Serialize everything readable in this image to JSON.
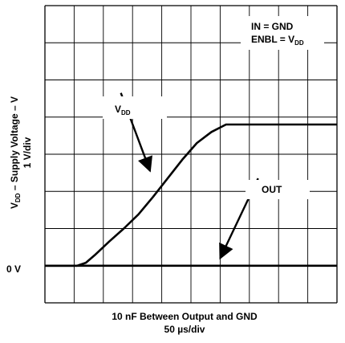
{
  "chart_data": {
    "type": "line",
    "xlabel": "10 nF Between Output and GND",
    "xscale": "50 µs/div",
    "ylabel_main": "V",
    "ylabel_sub": "DD",
    "ylabel_rest": " – Supply Voltage – V",
    "yscale": "1 V/div",
    "zero_label": "0 V",
    "grid": true,
    "divisions": {
      "x": 10,
      "y": 8
    },
    "conditions": {
      "line1": "IN = GND",
      "line2_main": "ENBL = V",
      "line2_sub": "DD"
    },
    "series": [
      {
        "name_main": "V",
        "name_sub": "DD",
        "points": [
          [
            0,
            0
          ],
          [
            1.1,
            0
          ],
          [
            1.4,
            0.08
          ],
          [
            1.7,
            0.28
          ],
          [
            2.2,
            0.65
          ],
          [
            2.7,
            1.0
          ],
          [
            3.2,
            1.38
          ],
          [
            3.7,
            1.85
          ],
          [
            4.2,
            2.35
          ],
          [
            4.7,
            2.85
          ],
          [
            5.2,
            3.3
          ],
          [
            5.7,
            3.6
          ],
          [
            6.2,
            3.8
          ],
          [
            7.5,
            3.8
          ],
          [
            10,
            3.8
          ]
        ]
      },
      {
        "name_main": "OUT",
        "name_sub": "",
        "points": [
          [
            0,
            0
          ],
          [
            10,
            0
          ]
        ]
      }
    ],
    "annotations": [
      {
        "series": 0,
        "text_from": [
          2.6,
          4.65
        ],
        "arrow_to": [
          3.6,
          2.55
        ]
      },
      {
        "series": 1,
        "text_from": [
          7.3,
          2.35
        ],
        "arrow_to": [
          6.0,
          0.2
        ]
      }
    ]
  }
}
